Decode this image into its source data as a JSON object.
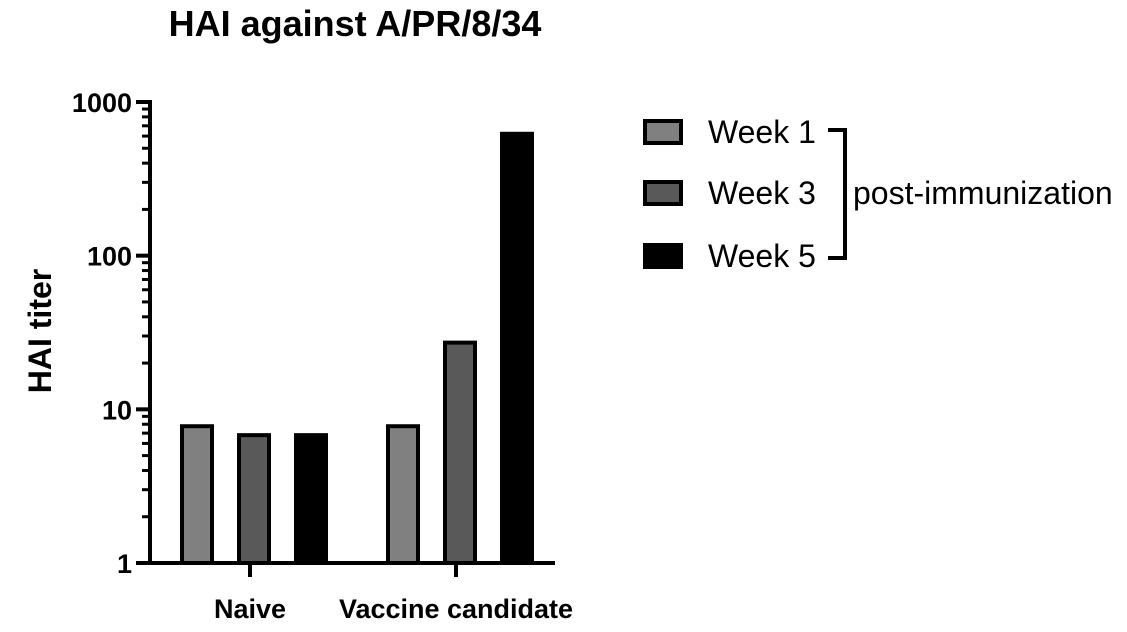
{
  "chart_data": {
    "type": "bar",
    "title": "HAI against A/PR/8/34",
    "ylabel": "HAI titer",
    "xlabel": "",
    "yscale": "log",
    "ylim": [
      1,
      1000
    ],
    "yticks": [
      1,
      10,
      100,
      1000
    ],
    "ytick_labels": [
      "1",
      "10",
      "100",
      "1000"
    ],
    "categories": [
      "Naive",
      "Vaccine candidate"
    ],
    "series": [
      {
        "name": "Week 1",
        "values": [
          8,
          8
        ],
        "color": "#808080"
      },
      {
        "name": "Week 3",
        "values": [
          7,
          28
        ],
        "color": "#595959"
      },
      {
        "name": "Week 5",
        "values": [
          7,
          640
        ],
        "color": "#000000"
      }
    ],
    "legend": {
      "placement": "right",
      "group_label": "post-immunization"
    },
    "grid": false
  }
}
